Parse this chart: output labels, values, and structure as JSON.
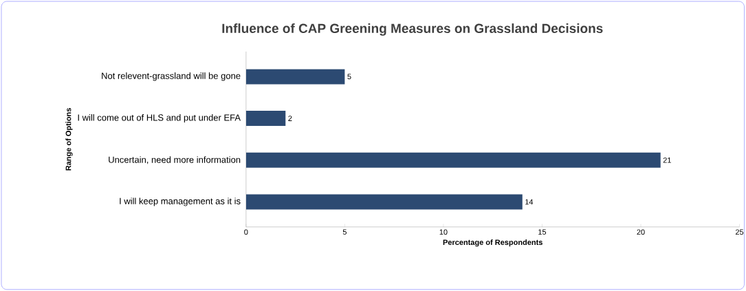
{
  "chart_data": {
    "type": "bar",
    "orientation": "horizontal",
    "title": "Influence of CAP Greening Measures on Grassland Decisions",
    "xlabel": "Percentage of Respondents",
    "ylabel": "Range of Options",
    "categories": [
      "Not relevent-grassland will be gone",
      "I will come out of HLS and put under EFA",
      "Uncertain, need more information",
      "I will keep management as it is"
    ],
    "values": [
      5,
      2,
      21,
      14
    ],
    "color": "#2c4a72",
    "data_labels": true,
    "xlim": [
      0,
      25
    ],
    "xticks": [
      0,
      5,
      10,
      15,
      20,
      25
    ],
    "grid": false
  }
}
